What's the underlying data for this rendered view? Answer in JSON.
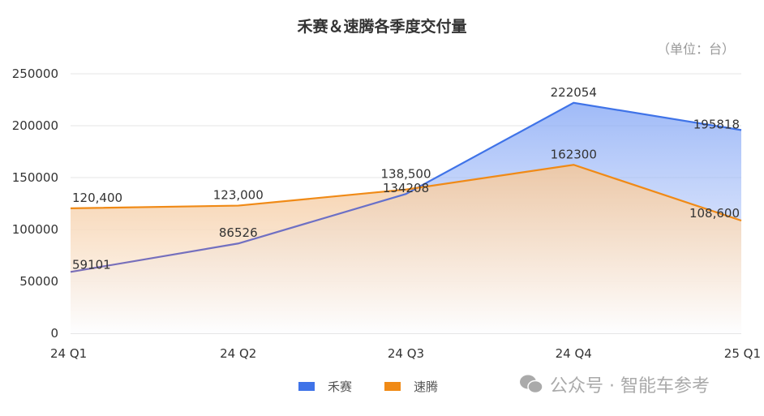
{
  "chart_data": {
    "type": "area",
    "title": "禾赛＆速腾各季度交付量",
    "unit_note": "（单位：台）",
    "categories": [
      "24 Q1",
      "24 Q2",
      "24 Q3",
      "24 Q4",
      "25 Q1"
    ],
    "ylim": [
      0,
      250000
    ],
    "yticks": [
      0,
      50000,
      100000,
      150000,
      200000,
      250000
    ],
    "ytick_labels": [
      "0",
      "50000",
      "100000",
      "150000",
      "200000",
      "250000"
    ],
    "grid": true,
    "legend_position": "bottom",
    "series": [
      {
        "name": "禾赛",
        "color": "#3f73e8",
        "values": [
          59101,
          86526,
          134208,
          222054,
          195818
        ],
        "labels": [
          "59101",
          "86526",
          "134208",
          "222054",
          "195818"
        ]
      },
      {
        "name": "速腾",
        "color": "#f08a16",
        "values": [
          120400,
          123000,
          138500,
          162300,
          108600
        ],
        "labels": [
          "120,400",
          "123,000",
          "138,500",
          "162300",
          "108,600"
        ]
      }
    ]
  },
  "watermark": "公众号 · 智能车参考"
}
